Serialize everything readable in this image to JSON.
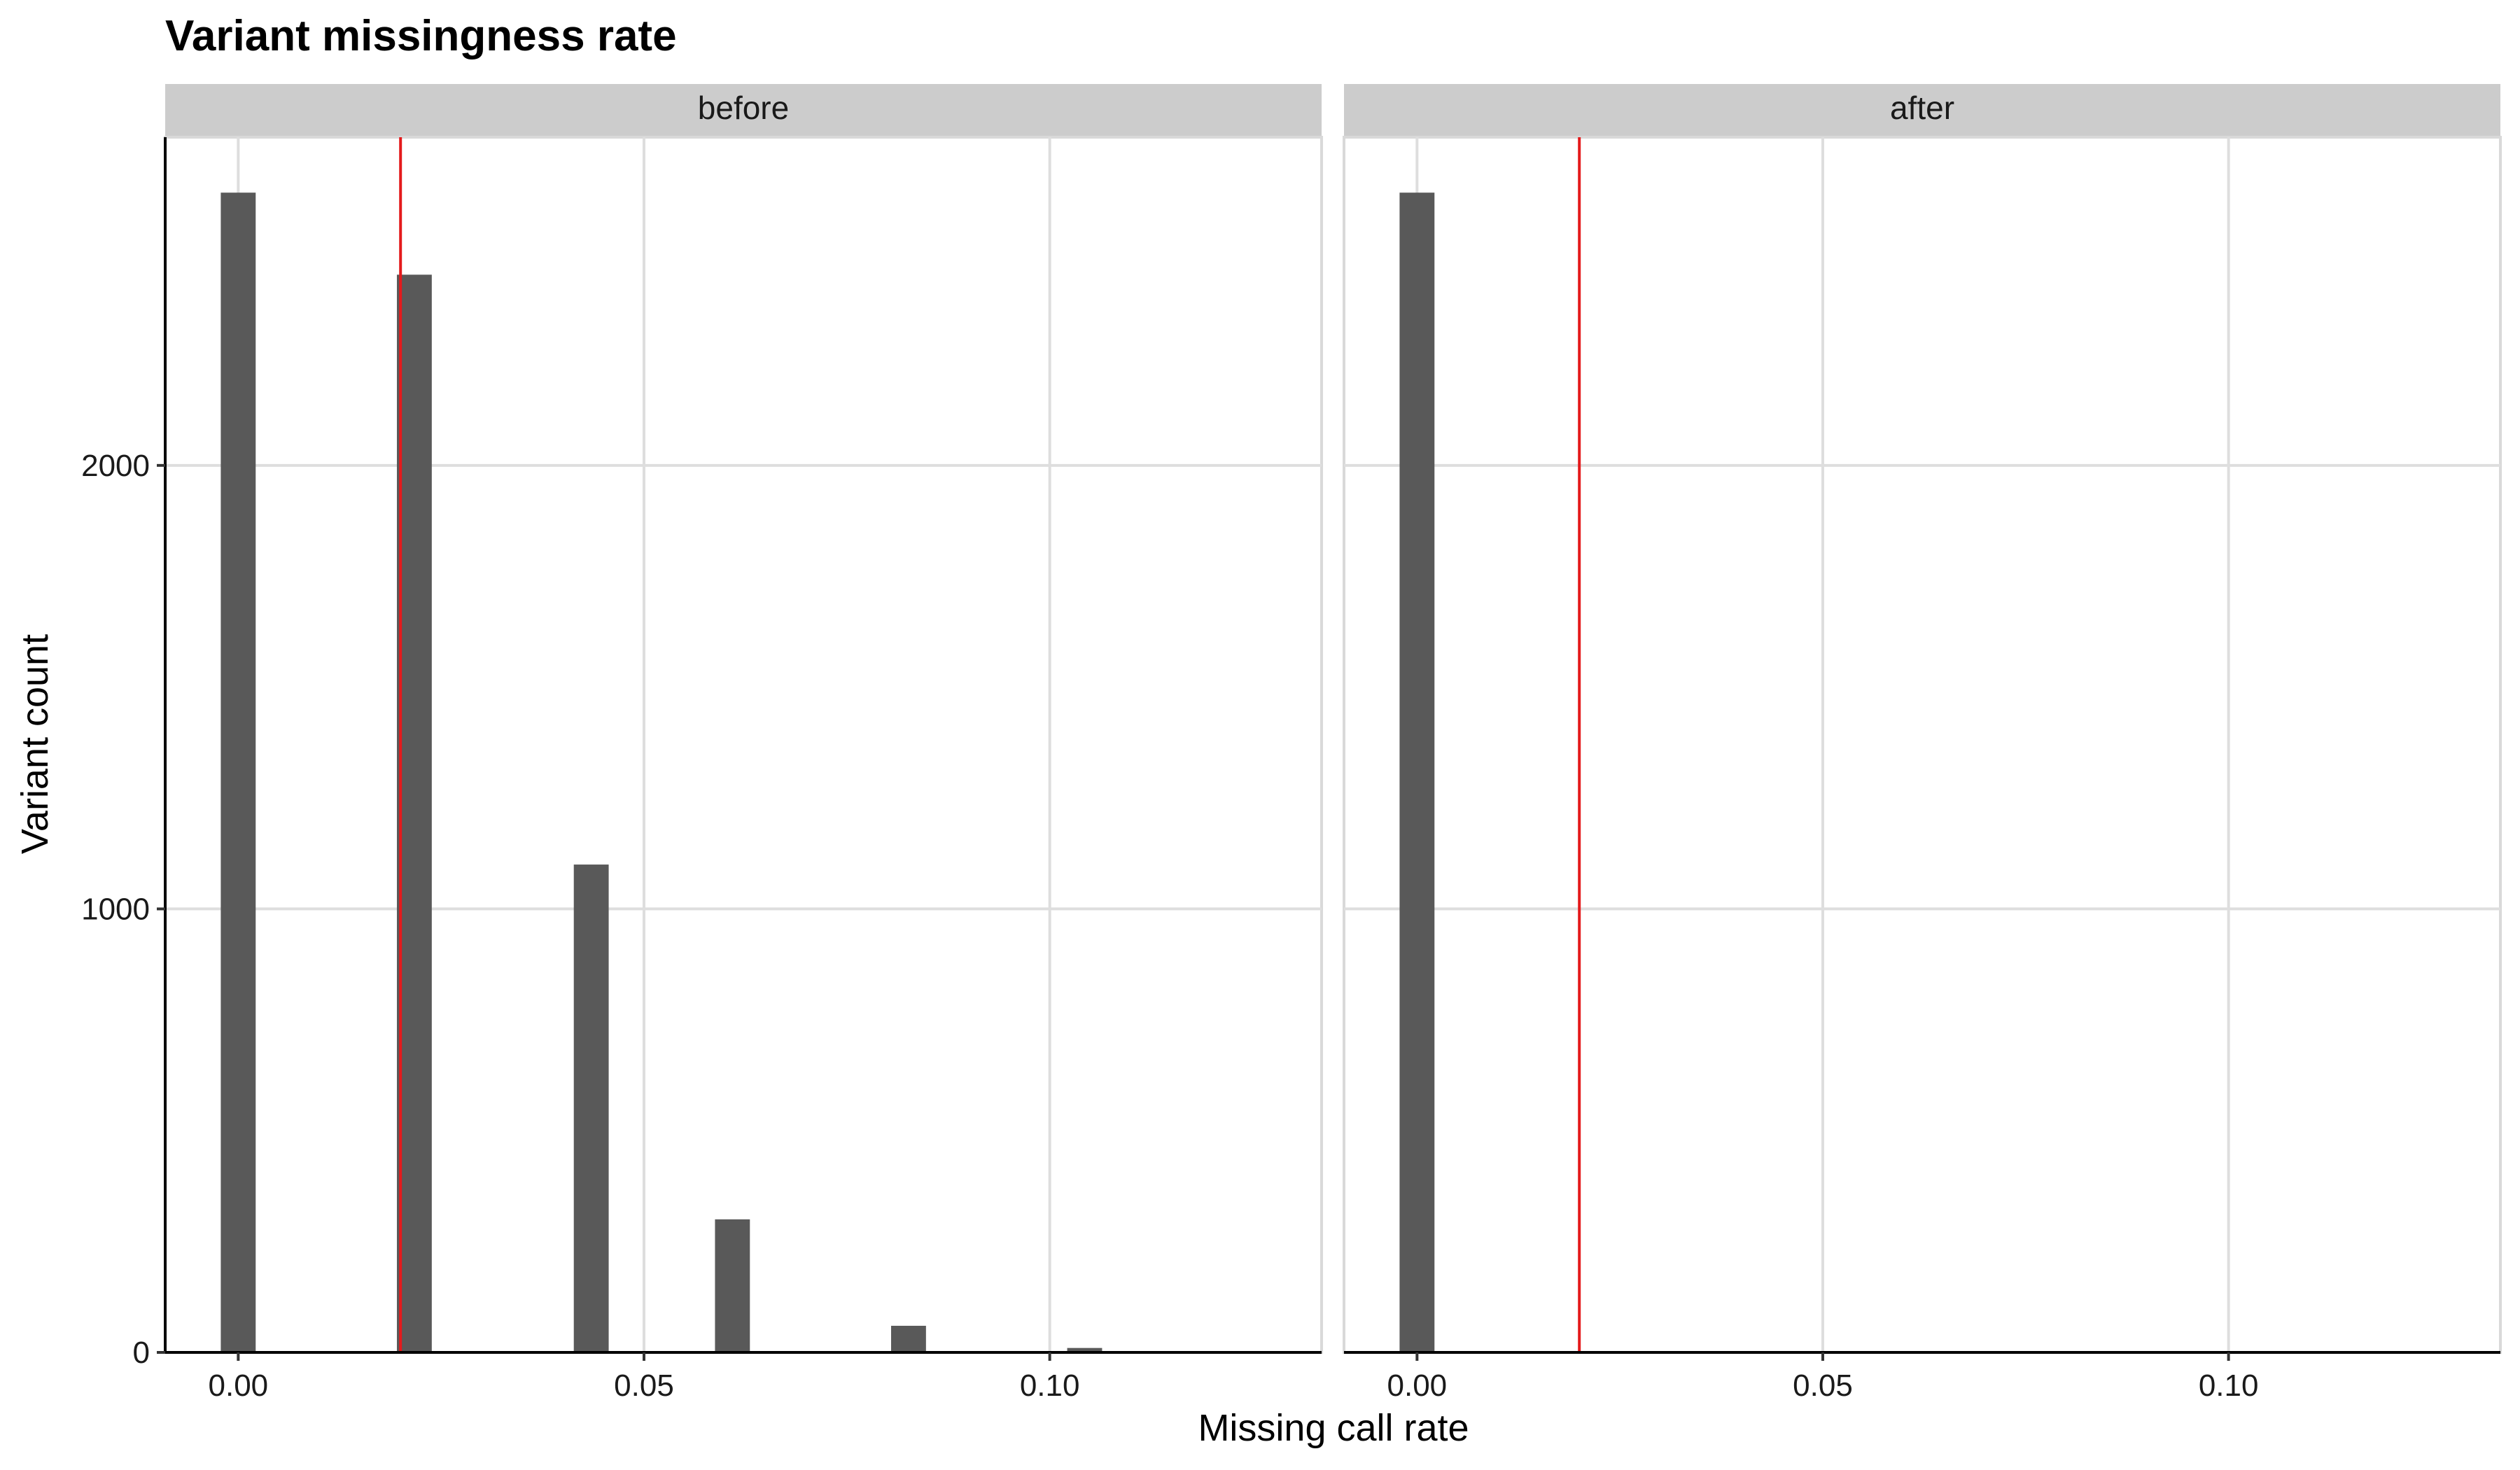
{
  "chart_data": {
    "type": "bar",
    "title": "Variant missingness rate",
    "xlabel": "Missing call rate",
    "ylabel": "Variant count",
    "xlim": [
      -0.009,
      0.1335
    ],
    "ylim": [
      0,
      2740
    ],
    "x_ticks": [
      0.0,
      0.05,
      0.1
    ],
    "x_tick_labels": [
      "0.00",
      "0.05",
      "0.10"
    ],
    "y_ticks": [
      0,
      1000,
      2000
    ],
    "y_tick_labels": [
      "0",
      "1000",
      "2000"
    ],
    "bin_width": 0.0043,
    "bar_color": "#595959",
    "threshold": 0.02,
    "threshold_color": "#e41a1c",
    "grid": true,
    "facets": [
      {
        "label": "before",
        "bars": [
          {
            "x": 0.0,
            "count": 2615
          },
          {
            "x": 0.0217,
            "count": 2430
          },
          {
            "x": 0.0435,
            "count": 1100
          },
          {
            "x": 0.0609,
            "count": 300
          },
          {
            "x": 0.0826,
            "count": 60
          },
          {
            "x": 0.1043,
            "count": 10
          }
        ]
      },
      {
        "label": "after",
        "bars": [
          {
            "x": 0.0,
            "count": 2615
          }
        ]
      }
    ]
  }
}
